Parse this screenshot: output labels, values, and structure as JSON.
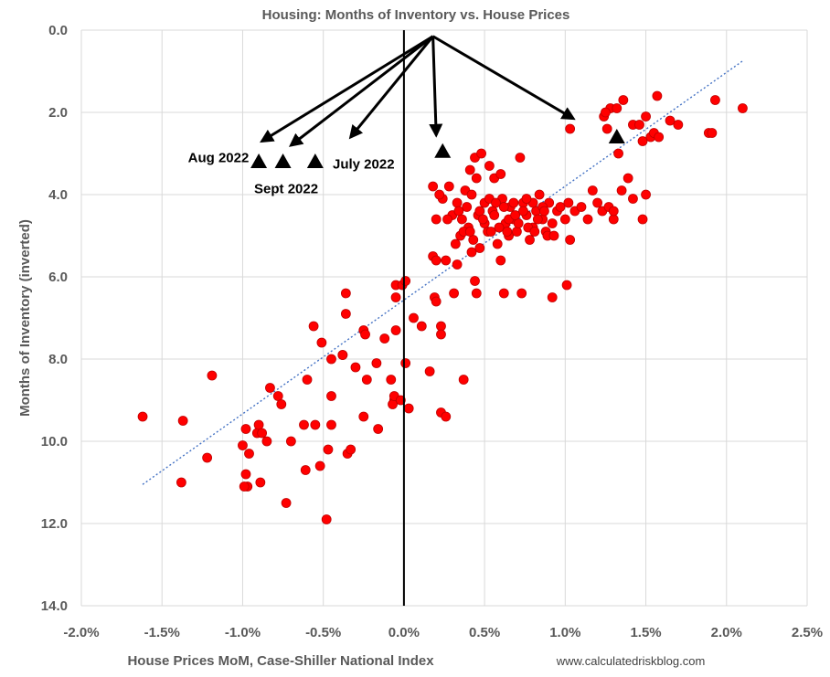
{
  "chart_data": {
    "type": "scatter",
    "title": "Housing: Months of Inventory vs. House Prices",
    "xlabel": "House Prices MoM, Case-Shiller National Index",
    "ylabel": "Months of Inventory (inverted)",
    "source": "www.calculatedriskblog.com",
    "x_ticks": [
      "-2.0%",
      "-1.5%",
      "-1.0%",
      "-0.5%",
      "0.0%",
      "0.5%",
      "1.0%",
      "1.5%",
      "2.0%",
      "2.5%"
    ],
    "y_ticks": [
      "0.0",
      "2.0",
      "4.0",
      "6.0",
      "8.0",
      "10.0",
      "12.0",
      "14.0"
    ],
    "xlim": [
      -2.0,
      2.5
    ],
    "ylim": [
      0,
      14
    ],
    "y_inverted": true,
    "grid": true,
    "colors": {
      "points": "#ff0000",
      "points_stroke": "#c00000",
      "trend": "#4472c4",
      "zero_line": "#000000",
      "highlight": "#000000",
      "grid": "#d9d9d9"
    },
    "trendline": {
      "style": "dotted",
      "x": [
        -1.62,
        2.1
      ],
      "y": [
        11.05,
        0.75
      ]
    },
    "highlight_points": [
      {
        "x": -0.9,
        "y": 3.2
      },
      {
        "x": -0.75,
        "y": 3.2
      },
      {
        "x": -0.55,
        "y": 3.2
      },
      {
        "x": 0.24,
        "y": 2.95
      },
      {
        "x": 1.32,
        "y": 2.6
      }
    ],
    "annotations": [
      {
        "text": "Aug 2022",
        "x": -1.15,
        "y": 3.1
      },
      {
        "text": "Sept 2022",
        "x": -0.73,
        "y": 3.85
      },
      {
        "text": "July 2022",
        "x": -0.25,
        "y": 3.25
      }
    ],
    "arrows": {
      "origin": {
        "x": 0.18,
        "y": 0.15
      },
      "targets": [
        {
          "x": -0.88,
          "y": 2.7
        },
        {
          "x": -0.7,
          "y": 2.8
        },
        {
          "x": -0.33,
          "y": 2.6
        },
        {
          "x": 0.2,
          "y": 2.55
        },
        {
          "x": 1.05,
          "y": 2.15
        }
      ]
    },
    "series": [
      {
        "points": [
          [
            -1.62,
            9.4
          ],
          [
            -1.37,
            9.5
          ],
          [
            -1.38,
            11.0
          ],
          [
            -1.19,
            8.4
          ],
          [
            -1.22,
            10.4
          ],
          [
            -1.0,
            10.1
          ],
          [
            -0.98,
            9.7
          ],
          [
            -0.98,
            10.8
          ],
          [
            -0.97,
            11.1
          ],
          [
            -0.99,
            11.1
          ],
          [
            -0.96,
            10.3
          ],
          [
            -0.91,
            9.8
          ],
          [
            -0.9,
            9.6
          ],
          [
            -0.88,
            9.8
          ],
          [
            -0.89,
            11.0
          ],
          [
            -0.83,
            8.7
          ],
          [
            -0.85,
            10.0
          ],
          [
            -0.78,
            8.9
          ],
          [
            -0.76,
            9.1
          ],
          [
            -0.73,
            11.5
          ],
          [
            -0.7,
            10.0
          ],
          [
            -0.62,
            9.6
          ],
          [
            -0.61,
            10.7
          ],
          [
            -0.6,
            8.5
          ],
          [
            -0.55,
            9.6
          ],
          [
            -0.56,
            7.2
          ],
          [
            -0.51,
            7.6
          ],
          [
            -0.52,
            10.6
          ],
          [
            -0.48,
            11.9
          ],
          [
            -0.47,
            10.2
          ],
          [
            -0.45,
            8.0
          ],
          [
            -0.45,
            9.6
          ],
          [
            -0.45,
            8.9
          ],
          [
            -0.38,
            7.9
          ],
          [
            -0.38,
            7.9
          ],
          [
            -0.36,
            6.9
          ],
          [
            -0.35,
            10.3
          ],
          [
            -0.33,
            10.2
          ],
          [
            -0.36,
            6.4
          ],
          [
            -0.3,
            8.2
          ],
          [
            -0.25,
            7.3
          ],
          [
            -0.24,
            7.4
          ],
          [
            -0.23,
            8.5
          ],
          [
            -0.25,
            9.4
          ],
          [
            -0.17,
            8.1
          ],
          [
            -0.16,
            9.7
          ],
          [
            -0.12,
            7.5
          ],
          [
            -0.08,
            8.5
          ],
          [
            -0.06,
            9.0
          ],
          [
            -0.07,
            9.1
          ],
          [
            -0.05,
            6.5
          ],
          [
            -0.05,
            6.2
          ],
          [
            -0.06,
            8.9
          ],
          [
            -0.02,
            9.0
          ],
          [
            -0.05,
            7.3
          ],
          [
            -0.01,
            6.2
          ],
          [
            0.01,
            6.1
          ],
          [
            0.01,
            8.1
          ],
          [
            0.03,
            9.2
          ],
          [
            0.06,
            7.0
          ],
          [
            0.11,
            7.2
          ],
          [
            0.16,
            8.3
          ],
          [
            0.19,
            6.5
          ],
          [
            0.2,
            6.6
          ],
          [
            0.23,
            7.2
          ],
          [
            0.23,
            7.4
          ],
          [
            0.23,
            9.3
          ],
          [
            0.26,
            9.4
          ],
          [
            0.31,
            6.4
          ],
          [
            0.37,
            8.5
          ],
          [
            0.44,
            6.1
          ],
          [
            0.45,
            6.4
          ],
          [
            0.62,
            6.4
          ],
          [
            0.73,
            6.4
          ],
          [
            0.92,
            6.5
          ],
          [
            1.01,
            6.2
          ],
          [
            0.18,
            5.5
          ],
          [
            0.2,
            5.6
          ],
          [
            0.26,
            5.6
          ],
          [
            0.33,
            5.7
          ],
          [
            0.42,
            5.4
          ],
          [
            0.47,
            5.3
          ],
          [
            0.6,
            5.6
          ],
          [
            0.18,
            3.8
          ],
          [
            0.2,
            4.6
          ],
          [
            0.24,
            4.1
          ],
          [
            0.28,
            3.8
          ],
          [
            0.3,
            4.5
          ],
          [
            0.33,
            4.2
          ],
          [
            0.38,
            3.9
          ],
          [
            0.41,
            3.4
          ],
          [
            0.44,
            3.1
          ],
          [
            0.45,
            3.6
          ],
          [
            0.48,
            3.0
          ],
          [
            0.53,
            3.3
          ],
          [
            0.56,
            3.6
          ],
          [
            0.6,
            3.5
          ],
          [
            0.22,
            4.0
          ],
          [
            0.27,
            4.6
          ],
          [
            0.32,
            5.2
          ],
          [
            0.35,
            5.0
          ],
          [
            0.39,
            4.3
          ],
          [
            0.4,
            4.8
          ],
          [
            0.43,
            5.1
          ],
          [
            0.46,
            4.5
          ],
          [
            0.5,
            4.2
          ],
          [
            0.52,
            4.9
          ],
          [
            0.55,
            4.4
          ],
          [
            0.58,
            5.2
          ],
          [
            0.61,
            4.1
          ],
          [
            0.63,
            4.7
          ],
          [
            0.65,
            5.0
          ],
          [
            0.66,
            4.3
          ],
          [
            0.68,
            4.6
          ],
          [
            0.7,
            4.9
          ],
          [
            0.72,
            3.1
          ],
          [
            0.74,
            4.2
          ],
          [
            0.76,
            4.5
          ],
          [
            0.78,
            5.1
          ],
          [
            0.8,
            4.8
          ],
          [
            0.82,
            4.4
          ],
          [
            0.84,
            4.0
          ],
          [
            0.86,
            4.6
          ],
          [
            0.88,
            4.9
          ],
          [
            0.9,
            4.2
          ],
          [
            0.92,
            4.7
          ],
          [
            0.95,
            4.4
          ],
          [
            0.97,
            4.3
          ],
          [
            1.0,
            4.6
          ],
          [
            1.02,
            4.2
          ],
          [
            1.03,
            5.1
          ],
          [
            1.06,
            4.4
          ],
          [
            1.1,
            4.3
          ],
          [
            1.14,
            4.6
          ],
          [
            1.17,
            3.9
          ],
          [
            1.2,
            4.2
          ],
          [
            1.23,
            4.4
          ],
          [
            1.27,
            4.3
          ],
          [
            1.3,
            4.6
          ],
          [
            1.35,
            3.9
          ],
          [
            0.34,
            4.4
          ],
          [
            0.37,
            4.9
          ],
          [
            0.42,
            4.0
          ],
          [
            0.47,
            4.4
          ],
          [
            0.5,
            4.7
          ],
          [
            0.53,
            4.1
          ],
          [
            0.56,
            4.5
          ],
          [
            0.59,
            4.8
          ],
          [
            0.62,
            4.3
          ],
          [
            0.65,
            4.6
          ],
          [
            0.68,
            4.2
          ],
          [
            0.71,
            4.7
          ],
          [
            0.74,
            4.4
          ],
          [
            0.77,
            4.8
          ],
          [
            0.8,
            4.2
          ],
          [
            0.83,
            4.6
          ],
          [
            0.86,
            4.3
          ],
          [
            0.89,
            5.0
          ],
          [
            0.36,
            4.6
          ],
          [
            0.41,
            4.9
          ],
          [
            0.49,
            4.6
          ],
          [
            0.54,
            4.9
          ],
          [
            0.57,
            4.2
          ],
          [
            0.64,
            4.9
          ],
          [
            0.69,
            4.5
          ],
          [
            0.76,
            4.1
          ],
          [
            0.81,
            4.9
          ],
          [
            0.87,
            4.4
          ],
          [
            0.93,
            5.0
          ],
          [
            1.03,
            2.4
          ],
          [
            1.24,
            2.1
          ],
          [
            1.26,
            2.4
          ],
          [
            1.28,
            1.9
          ],
          [
            1.32,
            1.9
          ],
          [
            1.36,
            1.7
          ],
          [
            1.42,
            2.3
          ],
          [
            1.48,
            2.7
          ],
          [
            1.5,
            2.1
          ],
          [
            1.53,
            2.6
          ],
          [
            1.55,
            2.5
          ],
          [
            1.57,
            1.6
          ],
          [
            1.58,
            2.6
          ],
          [
            1.65,
            2.2
          ],
          [
            1.7,
            2.3
          ],
          [
            1.89,
            2.5
          ],
          [
            1.91,
            2.5
          ],
          [
            1.93,
            1.7
          ],
          [
            2.1,
            1.9
          ],
          [
            1.33,
            3.0
          ],
          [
            1.25,
            2.0
          ],
          [
            1.46,
            2.3
          ],
          [
            1.48,
            4.6
          ],
          [
            1.5,
            4.0
          ],
          [
            1.3,
            4.4
          ],
          [
            1.39,
            3.6
          ],
          [
            1.42,
            4.1
          ]
        ]
      }
    ]
  }
}
